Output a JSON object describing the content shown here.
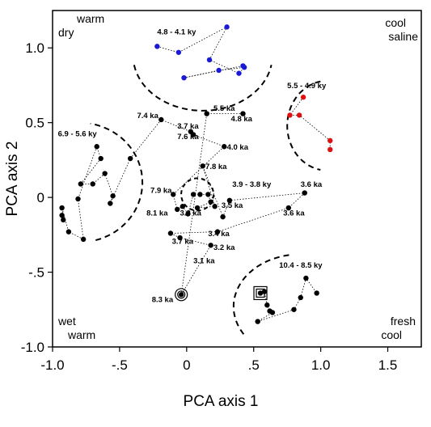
{
  "chart_data": {
    "type": "scatter",
    "xlabel": "PCA axis 1",
    "ylabel": "PCA axis 2",
    "xlim": [
      -1.0,
      1.75
    ],
    "ylim": [
      -1.0,
      1.25
    ],
    "xticks": [
      "-1.0",
      "-.5",
      "0",
      ".5",
      "1.0",
      "1.5"
    ],
    "yticks": [
      "1.0",
      "0.5",
      "0",
      "-.5",
      "-1.0"
    ],
    "xtick_values": [
      -1.0,
      -0.5,
      0,
      0.5,
      1.0,
      1.5
    ],
    "ytick_values": [
      1.0,
      0.5,
      0,
      -0.5,
      -1.0
    ],
    "grid": false,
    "corner_labels": {
      "top_left": [
        "warm",
        "dry"
      ],
      "top_right": [
        "cool",
        "saline"
      ],
      "bottom_left": [
        "wet",
        "warm"
      ],
      "bottom_right": [
        "fresh",
        "cool"
      ]
    },
    "colors": {
      "black": "#000000",
      "blue": "#1a1ad6",
      "red": "#e01010"
    },
    "series": [
      {
        "color": "black",
        "points": [
          [
            -0.93,
            -0.12
          ],
          [
            -0.92,
            -0.15
          ],
          [
            -0.93,
            -0.07
          ],
          [
            -0.88,
            -0.23
          ],
          [
            -0.77,
            -0.28
          ],
          [
            -0.81,
            -0.01
          ],
          [
            -0.67,
            0.34
          ],
          [
            -0.64,
            0.26
          ],
          [
            -0.79,
            0.09
          ],
          [
            -0.7,
            0.09
          ],
          [
            -0.61,
            0.16
          ],
          [
            -0.55,
            0.01
          ],
          [
            -0.57,
            -0.04
          ],
          [
            -0.42,
            0.26
          ],
          [
            -0.19,
            0.52
          ],
          [
            0.03,
            0.44
          ],
          [
            0.05,
            0.42
          ],
          [
            0.28,
            0.34
          ],
          [
            -0.1,
            0.02
          ],
          [
            -0.07,
            -0.08
          ],
          [
            -0.03,
            -0.06
          ],
          [
            0.01,
            -0.11
          ],
          [
            0.05,
            0.02
          ],
          [
            0.1,
            0.02
          ],
          [
            0.16,
            0.02
          ],
          [
            0.18,
            -0.03
          ],
          [
            0.08,
            -0.07
          ],
          [
            0.21,
            -0.06
          ],
          [
            0.12,
            0.21
          ],
          [
            0.27,
            -0.13
          ],
          [
            0.32,
            -0.02
          ],
          [
            0.88,
            0.03
          ],
          [
            0.76,
            -0.07
          ],
          [
            0.23,
            -0.23
          ],
          [
            -0.12,
            -0.24
          ],
          [
            -0.05,
            -0.27
          ],
          [
            0.18,
            -0.32
          ],
          [
            -0.04,
            -0.65
          ],
          [
            0.15,
            0.56
          ],
          [
            0.42,
            0.56
          ]
        ]
      },
      {
        "color": "blue",
        "points": [
          [
            -0.22,
            1.01
          ],
          [
            -0.06,
            0.97
          ],
          [
            0.3,
            1.14
          ],
          [
            0.17,
            0.92
          ],
          [
            0.39,
            0.83
          ],
          [
            0.43,
            0.87
          ],
          [
            0.24,
            0.85
          ],
          [
            -0.02,
            0.8
          ],
          [
            0.42,
            0.88
          ]
        ]
      },
      {
        "color": "red",
        "points": [
          [
            0.87,
            0.67
          ],
          [
            0.77,
            0.55
          ],
          [
            0.84,
            0.55
          ],
          [
            1.07,
            0.38
          ],
          [
            1.07,
            0.32
          ]
        ]
      },
      {
        "color": "black",
        "points": [
          [
            0.55,
            -0.64
          ],
          [
            0.58,
            -0.63
          ],
          [
            0.6,
            -0.72
          ],
          [
            0.62,
            -0.76
          ],
          [
            0.64,
            -0.77
          ],
          [
            0.53,
            -0.83
          ],
          [
            0.8,
            -0.75
          ],
          [
            0.85,
            -0.67
          ],
          [
            0.89,
            -0.54
          ],
          [
            0.97,
            -0.64
          ]
        ]
      }
    ],
    "annotations": [
      {
        "text": "4.8 - 4.1 ky",
        "x": -0.22,
        "y": 1.09
      },
      {
        "text": "5.5 - 4.9 ky",
        "x": 0.75,
        "y": 0.73
      },
      {
        "text": "6.9 - 5.6 ky",
        "x": -0.96,
        "y": 0.41
      },
      {
        "text": "7.4 ka",
        "x": -0.37,
        "y": 0.53
      },
      {
        "text": "5.5 ka",
        "x": 0.2,
        "y": 0.58
      },
      {
        "text": "3.7 ka",
        "x": -0.07,
        "y": 0.46
      },
      {
        "text": "4.8 ka",
        "x": 0.33,
        "y": 0.51
      },
      {
        "text": "7.6 ka",
        "x": -0.07,
        "y": 0.39
      },
      {
        "text": "4.0 ka",
        "x": 0.3,
        "y": 0.32
      },
      {
        "text": "7.8 ka",
        "x": 0.14,
        "y": 0.19
      },
      {
        "text": "3.9 - 3.8 ky",
        "x": 0.34,
        "y": 0.07
      },
      {
        "text": "3.6 ka",
        "x": 0.85,
        "y": 0.07
      },
      {
        "text": "7.9 ka",
        "x": -0.27,
        "y": 0.03
      },
      {
        "text": "3.5 ka",
        "x": 0.26,
        "y": -0.07
      },
      {
        "text": "3.6 ka",
        "x": 0.72,
        "y": -0.12
      },
      {
        "text": "8.1 ka",
        "x": -0.3,
        "y": -0.12
      },
      {
        "text": "3.3 ka",
        "x": -0.05,
        "y": -0.12
      },
      {
        "text": "3.4 ka",
        "x": 0.16,
        "y": -0.26
      },
      {
        "text": "3.7 ka",
        "x": -0.11,
        "y": -0.31
      },
      {
        "text": "3.2 ka",
        "x": 0.2,
        "y": -0.35
      },
      {
        "text": "3.1 ka",
        "x": 0.05,
        "y": -0.44
      },
      {
        "text": "10.4 - 8.5 ky",
        "x": 0.69,
        "y": -0.47
      },
      {
        "text": "8.3 ka",
        "x": -0.26,
        "y": -0.7
      }
    ]
  }
}
